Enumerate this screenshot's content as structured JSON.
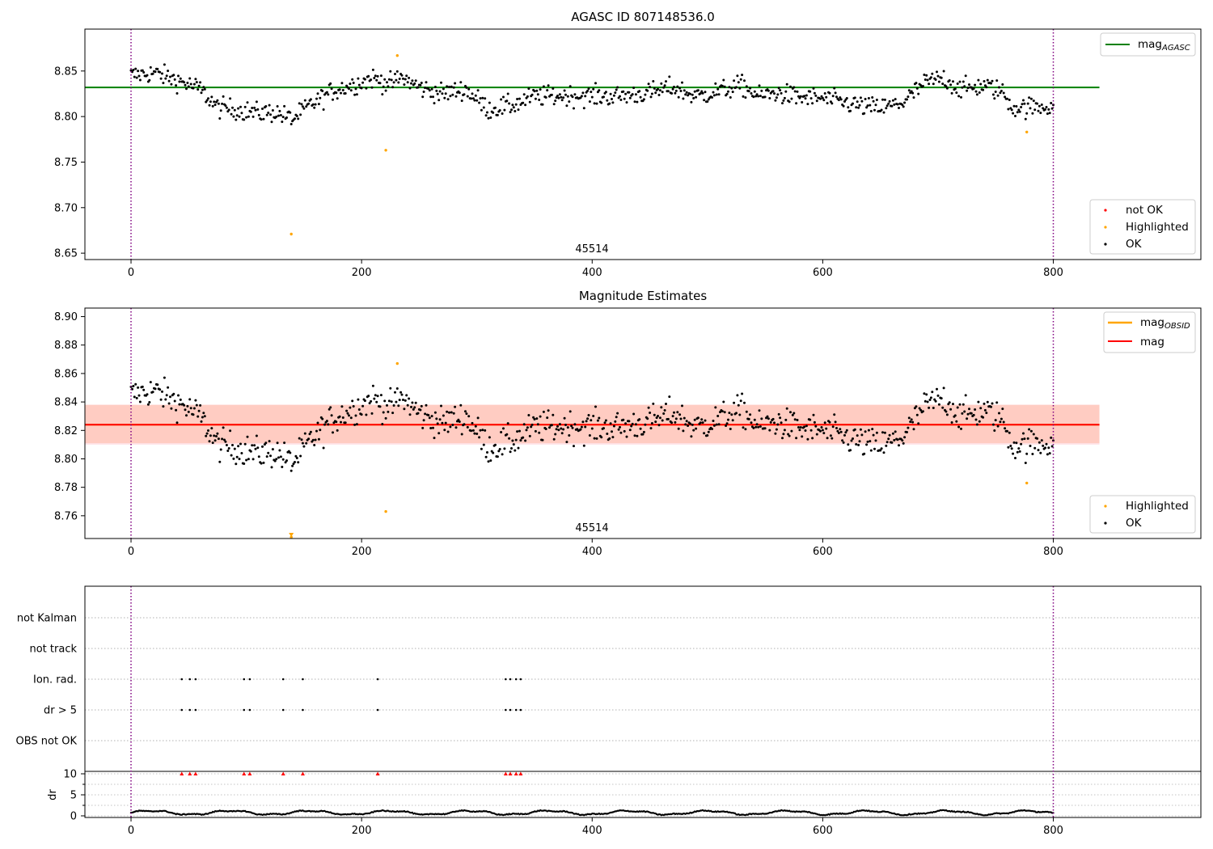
{
  "figure": {
    "background": "#ffffff"
  },
  "panel1": {
    "title": "AGASC ID 807148536.0",
    "obsid_label": "45514"
  },
  "panel2": {
    "title": "Magnitude Estimates",
    "obsid_label": "45514"
  },
  "panel3": {
    "title": ""
  },
  "legend1_top": {
    "agasc_label": "mag"
  },
  "legend1_bottom": {
    "not_ok": "not OK",
    "highlighted": "Highlighted",
    "ok": "OK"
  },
  "legend2_top": {
    "obsid_label": "mag",
    "mag_label": "mag"
  },
  "legend2_bottom": {
    "highlighted": "Highlighted",
    "ok": "OK"
  },
  "colors": {
    "ok": "#000000",
    "not_ok": "#ff0000",
    "highlighted": "#ffa500",
    "agasc_line": "#008000",
    "obsid_line": "#ffa500",
    "mag_line": "#ff0000",
    "band_mag": "#ffc0cb",
    "band_obsid": "#ffa07a",
    "obs_boundary": "#800080",
    "grid": "#b0b0b0"
  },
  "chart_data": [
    {
      "type": "scatter",
      "title": "AGASC ID 807148536.0",
      "xlabel": "",
      "ylabel": "",
      "xlim": [
        -40,
        928
      ],
      "ylim": [
        8.643,
        8.896
      ],
      "xticks": [
        0,
        200,
        400,
        600,
        800
      ],
      "yticks": [
        8.65,
        8.7,
        8.75,
        8.8,
        8.85
      ],
      "grid": false,
      "legend_placement": [
        "upper right",
        "lower right"
      ],
      "observation_boundaries": [
        0,
        800
      ],
      "obsid": "45514",
      "lines": [
        {
          "name": "mag_AGASC",
          "y": 8.832,
          "x_range": [
            -40,
            840
          ]
        }
      ],
      "series": [
        {
          "name": "OK",
          "description": "~800 samples, x 0-800, y 8.79-8.86 following the shown trend",
          "trend_x": [
            0,
            20,
            40,
            60,
            75,
            90,
            110,
            125,
            140,
            155,
            175,
            195,
            210,
            225,
            235,
            250,
            270,
            290,
            310,
            330,
            350,
            380,
            420,
            450,
            470,
            490,
            510,
            530,
            545,
            560,
            580,
            600,
            620,
            640,
            655,
            670,
            690,
            705,
            720,
            740,
            755,
            765,
            780,
            800
          ],
          "trend_y": [
            8.845,
            8.848,
            8.84,
            8.83,
            8.81,
            8.808,
            8.804,
            8.805,
            8.797,
            8.812,
            8.828,
            8.836,
            8.842,
            8.836,
            8.843,
            8.832,
            8.825,
            8.83,
            8.808,
            8.812,
            8.822,
            8.823,
            8.822,
            8.826,
            8.832,
            8.822,
            8.828,
            8.834,
            8.822,
            8.826,
            8.821,
            8.82,
            8.815,
            8.81,
            8.81,
            8.816,
            8.838,
            8.842,
            8.83,
            8.834,
            8.828,
            8.81,
            8.81,
            8.812
          ]
        },
        {
          "name": "Highlighted",
          "x": [
            139,
            221,
            231,
            777
          ],
          "y": [
            8.671,
            8.763,
            8.867,
            8.783
          ]
        },
        {
          "name": "not OK",
          "x": [],
          "y": []
        }
      ]
    },
    {
      "type": "scatter",
      "title": "Magnitude Estimates",
      "xlabel": "",
      "ylabel": "",
      "xlim": [
        -40,
        928
      ],
      "ylim": [
        8.744,
        8.906
      ],
      "xticks": [
        0,
        200,
        400,
        600,
        800
      ],
      "yticks": [
        8.76,
        8.78,
        8.8,
        8.82,
        8.84,
        8.86,
        8.88,
        8.9
      ],
      "grid": false,
      "legend_placement": [
        "upper right",
        "lower right"
      ],
      "observation_boundaries": [
        0,
        800
      ],
      "obsid": "45514",
      "lines": [
        {
          "name": "mag_OBSID",
          "y": 8.824,
          "band": [
            8.811,
            8.838
          ],
          "x_range": [
            -40,
            840
          ]
        },
        {
          "name": "mag",
          "y": 8.824,
          "band": [
            8.81,
            8.838
          ],
          "x_range": [
            -40,
            840
          ]
        }
      ],
      "series": [
        {
          "name": "OK",
          "description": "same samples as upper panel"
        },
        {
          "name": "Highlighted",
          "x": [
            139,
            221,
            231,
            777
          ],
          "y": [
            8.745,
            8.763,
            8.867,
            8.783
          ]
        }
      ]
    },
    {
      "type": "scatter",
      "title": "",
      "categories": [
        "not Kalman",
        "not track",
        "Ion. rad.",
        "dr > 5",
        "OBS not OK"
      ],
      "flagged_x": {
        "not Kalman": [],
        "not track": [],
        "Ion. rad.": [
          44,
          51,
          56,
          98,
          103,
          132,
          149,
          214,
          325,
          329,
          334,
          338
        ],
        "dr > 5": [
          44,
          51,
          56,
          98,
          103,
          132,
          149,
          214,
          325,
          329,
          334,
          338
        ],
        "OBS not OK": []
      },
      "dr": {
        "ylabel": "dr",
        "ylim": [
          0,
          10
        ],
        "yticks": [
          0,
          5,
          10
        ],
        "description": "dr values ~0.1-1.6 for x 0-800; clipped at 10 (red markers) at flagged x",
        "clipped_x": [
          44,
          51,
          56,
          98,
          103,
          132,
          149,
          214,
          325,
          329,
          334,
          338
        ]
      },
      "xlim": [
        -40,
        928
      ],
      "xticks": [
        0,
        200,
        400,
        600,
        800
      ],
      "observation_boundaries": [
        0,
        800
      ]
    }
  ]
}
